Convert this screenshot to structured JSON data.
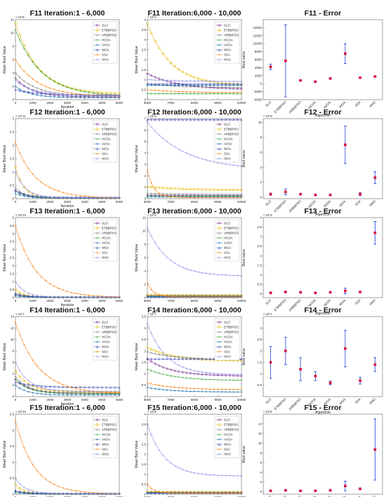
{
  "algorithms": [
    "SLO",
    "ETBBPSO",
    "ARBBPSO",
    "HCOA",
    "AVOA",
    "WOA",
    "SSA",
    "HHO"
  ],
  "colors": {
    "SLO": "#7b2d8e",
    "ETBBPSO": "#e8c11c",
    "ARBBPSO": "#7f7f7f",
    "HCOA": "#2ca02c",
    "AVOA": "#1f77b4",
    "WOA": "#3f51b5",
    "SSA": "#ff7f0e",
    "HHO": "#8d8ee8",
    "errbar": "#1f3fd6",
    "errmark": "#e0103c"
  },
  "chart_data": [
    {
      "id": "F11-a",
      "type": "line",
      "title": "F11  Iteration:1 - 6,000",
      "xlabel": "Iteration",
      "ylabel": "Mean Best Value",
      "multiplier": "× 10^8",
      "xlim": [
        0,
        6000
      ],
      "ylim": [
        0,
        12
      ],
      "xticks": [
        0,
        1000,
        2000,
        3000,
        4000,
        5000,
        6000
      ],
      "yticks": [
        0,
        2,
        4,
        6,
        8,
        10,
        12
      ],
      "series": [
        {
          "name": "SLO",
          "start": 3.2,
          "end": 0.4,
          "rate": 1.2
        },
        {
          "name": "ETBBPSO",
          "start": 11.5,
          "end": 0.8,
          "rate": 0.9
        },
        {
          "name": "ARBBPSO",
          "start": 4.0,
          "end": 0.5,
          "rate": 1.0
        },
        {
          "name": "HCOA",
          "start": 10.5,
          "end": 0.5,
          "rate": 0.8
        },
        {
          "name": "AVOA",
          "start": 2.0,
          "end": 0.3,
          "rate": 1.4
        },
        {
          "name": "WOA",
          "start": 1.5,
          "end": 0.7,
          "rate": 1.0
        },
        {
          "name": "SSA",
          "start": 6.0,
          "end": 0.5,
          "rate": 0.9
        },
        {
          "name": "HHO",
          "start": 2.8,
          "end": 0.6,
          "rate": 1.1
        }
      ]
    },
    {
      "id": "F11-b",
      "type": "line",
      "title": "F11  Iteration:6,000 - 10,000",
      "xlabel": "",
      "ylabel": "Mean Best Value",
      "multiplier": "× 10^8",
      "xlim": [
        6000,
        10000
      ],
      "ylim": [
        0,
        4
      ],
      "xticks": [
        6000,
        7000,
        8000,
        9000,
        10000
      ],
      "yticks": [
        0,
        0.5,
        1,
        1.5,
        2,
        2.5,
        3,
        3.5,
        4
      ],
      "series": [
        {
          "name": "SLO",
          "start": 1.3,
          "end": 0.5,
          "rate": 0.6
        },
        {
          "name": "ETBBPSO",
          "start": 3.8,
          "end": 0.7,
          "rate": 0.8
        },
        {
          "name": "ARBBPSO",
          "start": 0.8,
          "end": 0.6,
          "rate": 0.6
        },
        {
          "name": "HCOA",
          "start": 0.3,
          "end": 0.3,
          "rate": 0.5
        },
        {
          "name": "AVOA",
          "start": 0.72,
          "end": 0.72,
          "rate": 0.5
        },
        {
          "name": "WOA",
          "start": 0.78,
          "end": 0.78,
          "rate": 0.5
        },
        {
          "name": "SSA",
          "start": 0.5,
          "end": 0.35,
          "rate": 0.6
        },
        {
          "name": "HHO",
          "start": 1.0,
          "end": 0.9,
          "rate": 0.5
        }
      ]
    },
    {
      "id": "F11-c",
      "type": "errorbar",
      "title": "F11 - Error",
      "xlabel": "Algorithm",
      "ylabel": "Best value",
      "multiplier": "",
      "ylim": [
        -4000,
        16000
      ],
      "yticks": [
        -4000,
        -2000,
        0,
        2000,
        4000,
        6000,
        8000,
        10000,
        12000,
        14000
      ],
      "means": [
        4200,
        5700,
        800,
        500,
        1300,
        7500,
        1500,
        1800
      ],
      "errs": [
        700,
        9000,
        150,
        150,
        150,
        2500,
        150,
        150
      ]
    },
    {
      "id": "F12-a",
      "type": "line",
      "title": "F12  Iteration:1 - 6,000",
      "xlabel": "Iteration",
      "ylabel": "Mean Best Value",
      "multiplier": "× 10^11",
      "xlim": [
        0,
        6000
      ],
      "ylim": [
        0,
        3
      ],
      "xticks": [
        0,
        1000,
        2000,
        3000,
        4000,
        5000,
        6000
      ],
      "yticks": [
        0,
        0.5,
        1,
        1.5,
        2,
        2.5,
        3
      ],
      "series": [
        {
          "name": "SLO",
          "start": 0.3,
          "end": 0.02,
          "rate": 2.0
        },
        {
          "name": "ETBBPSO",
          "start": 1.2,
          "end": 0.02,
          "rate": 2.5
        },
        {
          "name": "ARBBPSO",
          "start": 0.4,
          "end": 0.02,
          "rate": 2.0
        },
        {
          "name": "HCOA",
          "start": 0.3,
          "end": 0.02,
          "rate": 2.0
        },
        {
          "name": "AVOA",
          "start": 0.2,
          "end": 0.02,
          "rate": 2.0
        },
        {
          "name": "WOA",
          "start": 0.3,
          "end": 0.05,
          "rate": 1.8
        },
        {
          "name": "SSA",
          "start": 2.1,
          "end": 0.02,
          "rate": 1.0
        },
        {
          "name": "HHO",
          "start": 1.0,
          "end": 0.03,
          "rate": 2.0
        }
      ]
    },
    {
      "id": "F12-b",
      "type": "line",
      "title": "F12  Iteration:6,000 - 10,000",
      "xlabel": "",
      "ylabel": "Mean Best Value",
      "multiplier": "× 10^9",
      "xlim": [
        6000,
        10000
      ],
      "ylim": [
        0,
        7
      ],
      "xticks": [
        6000,
        7000,
        8000,
        9000,
        10000
      ],
      "yticks": [
        0,
        1,
        2,
        3,
        4,
        5,
        6,
        7
      ],
      "series": [
        {
          "name": "SLO",
          "start": 0.3,
          "end": 0.25,
          "rate": 0.5
        },
        {
          "name": "ETBBPSO",
          "start": 1.05,
          "end": 0.75,
          "rate": 0.6
        },
        {
          "name": "ARBBPSO",
          "start": 0.45,
          "end": 0.35,
          "rate": 0.5
        },
        {
          "name": "HCOA",
          "start": 0.25,
          "end": 0.2,
          "rate": 0.5
        },
        {
          "name": "AVOA",
          "start": 0.15,
          "end": 0.15,
          "rate": 0.5
        },
        {
          "name": "WOA",
          "start": 6.9,
          "end": 6.9,
          "rate": 0.5
        },
        {
          "name": "SSA",
          "start": 2.5,
          "end": 0.1,
          "rate": 3.0
        },
        {
          "name": "HHO",
          "start": 6.7,
          "end": 2.5,
          "rate": 0.5
        }
      ]
    },
    {
      "id": "F12-c",
      "type": "errorbar",
      "title": "F12 - Error",
      "xlabel": "Algorithm",
      "ylabel": "Best value",
      "multiplier": "× 10^9",
      "ylim": [
        -0.2,
        10.5
      ],
      "yticks": [
        0,
        2,
        4,
        6,
        8,
        10
      ],
      "means": [
        0.4,
        0.7,
        0.4,
        0.3,
        0.3,
        7.0,
        0.4,
        2.6
      ],
      "errs": [
        0.15,
        0.4,
        0.1,
        0.08,
        0.08,
        2.5,
        0.2,
        0.8
      ]
    },
    {
      "id": "F13-a",
      "type": "line",
      "title": "F13  Iteration:1 - 6,000",
      "xlabel": "Iteration",
      "ylabel": "Mean Best Value",
      "multiplier": "× 10^10",
      "xlim": [
        0,
        6000
      ],
      "ylim": [
        0,
        5
      ],
      "xticks": [
        0,
        1000,
        2000,
        3000,
        4000,
        5000,
        6000
      ],
      "yticks": [
        0,
        0.5,
        1,
        1.5,
        2,
        2.5,
        3,
        3.5,
        4,
        4.5,
        5
      ],
      "series": [
        {
          "name": "SLO",
          "start": 0.2,
          "end": 0.02,
          "rate": 2.0
        },
        {
          "name": "ETBBPSO",
          "start": 0.5,
          "end": 0.02,
          "rate": 2.5
        },
        {
          "name": "ARBBPSO",
          "start": 0.3,
          "end": 0.02,
          "rate": 2.0
        },
        {
          "name": "HCOA",
          "start": 0.2,
          "end": 0.02,
          "rate": 2.0
        },
        {
          "name": "AVOA",
          "start": 0.1,
          "end": 0.02,
          "rate": 2.0
        },
        {
          "name": "WOA",
          "start": 0.2,
          "end": 0.04,
          "rate": 1.8
        },
        {
          "name": "SSA",
          "start": 4.5,
          "end": 0.02,
          "rate": 1.0
        },
        {
          "name": "HHO",
          "start": 1.0,
          "end": 0.03,
          "rate": 2.2
        }
      ]
    },
    {
      "id": "F13-b",
      "type": "line",
      "title": "F13  Iteration:6,000 - 10,000",
      "xlabel": "",
      "ylabel": "Mean Best Value",
      "multiplier": "× 10^9",
      "xlim": [
        6000,
        10000
      ],
      "ylim": [
        0,
        12
      ],
      "xticks": [
        6000,
        7000,
        8000,
        9000,
        10000
      ],
      "yticks": [
        0,
        2,
        4,
        6,
        8,
        10,
        12
      ],
      "series": [
        {
          "name": "SLO",
          "start": 0.3,
          "end": 0.3,
          "rate": 0.5
        },
        {
          "name": "ETBBPSO",
          "start": 0.4,
          "end": 0.35,
          "rate": 0.5
        },
        {
          "name": "ARBBPSO",
          "start": 0.25,
          "end": 0.2,
          "rate": 0.5
        },
        {
          "name": "HCOA",
          "start": 0.2,
          "end": 0.2,
          "rate": 0.5
        },
        {
          "name": "AVOA",
          "start": 0.15,
          "end": 0.15,
          "rate": 0.5
        },
        {
          "name": "WOA",
          "start": 0.1,
          "end": 0.1,
          "rate": 0.5
        },
        {
          "name": "SSA",
          "start": 2.2,
          "end": 0.1,
          "rate": 3.0
        },
        {
          "name": "HHO",
          "start": 10.5,
          "end": 3.2,
          "rate": 0.9
        }
      ]
    },
    {
      "id": "F13-c",
      "type": "errorbar",
      "title": "F13 - Error",
      "xlabel": "Algorithm",
      "ylabel": "Best value",
      "multiplier": "× 10^9",
      "ylim": [
        -0.2,
        4
      ],
      "yticks": [
        0,
        0.5,
        1,
        1.5,
        2,
        2.5,
        3,
        3.5,
        4
      ],
      "means": [
        0.05,
        0.1,
        0.08,
        0.05,
        0.08,
        0.15,
        0.1,
        3.2
      ],
      "errs": [
        0.02,
        0.03,
        0.02,
        0.02,
        0.02,
        0.15,
        0.03,
        0.6
      ]
    },
    {
      "id": "F14-a",
      "type": "line",
      "title": "F14  Iteration:1 - 6,000",
      "xlabel": "Iteration",
      "ylabel": "Mean Best Value",
      "multiplier": "× 10^7",
      "xlim": [
        0,
        6000
      ],
      "ylim": [
        0,
        14
      ],
      "xticks": [
        0,
        1000,
        2000,
        3000,
        4000,
        5000,
        6000
      ],
      "yticks": [
        0,
        2,
        4,
        6,
        8,
        10,
        12,
        14
      ],
      "series": [
        {
          "name": "SLO",
          "start": 3.0,
          "end": 0.6,
          "rate": 1.5
        },
        {
          "name": "ETBBPSO",
          "start": 4.5,
          "end": 0.8,
          "rate": 1.5
        },
        {
          "name": "ARBBPSO",
          "start": 3.5,
          "end": 0.5,
          "rate": 1.5
        },
        {
          "name": "HCOA",
          "start": 3.0,
          "end": 0.5,
          "rate": 1.5
        },
        {
          "name": "AVOA",
          "start": 2.0,
          "end": 0.3,
          "rate": 1.8
        },
        {
          "name": "WOA",
          "start": 2.5,
          "end": 1.6,
          "rate": 1.0
        },
        {
          "name": "SSA",
          "start": 13.0,
          "end": 0.5,
          "rate": 0.9
        },
        {
          "name": "HHO",
          "start": 6.0,
          "end": 0.9,
          "rate": 1.6
        }
      ]
    },
    {
      "id": "F14-b",
      "type": "line",
      "title": "F14  Iteration:6,000 - 10,000",
      "xlabel": "",
      "ylabel": "Mean Best Value",
      "multiplier": "× 10^7",
      "xlim": [
        6000,
        10000
      ],
      "ylim": [
        0,
        3.5
      ],
      "xticks": [
        6000,
        7000,
        8000,
        9000,
        10000
      ],
      "yticks": [
        0,
        0.5,
        1,
        1.5,
        2,
        2.5,
        3,
        3.5
      ],
      "series": [
        {
          "name": "SLO",
          "start": 1.65,
          "end": 0.9,
          "rate": 0.8
        },
        {
          "name": "ETBBPSO",
          "start": 2.15,
          "end": 1.55,
          "rate": 0.7
        },
        {
          "name": "ARBBPSO",
          "start": 1.95,
          "end": 1.6,
          "rate": 0.6
        },
        {
          "name": "HCOA",
          "start": 1.2,
          "end": 0.7,
          "rate": 0.7
        },
        {
          "name": "AVOA",
          "start": 0.4,
          "end": 0.2,
          "rate": 0.8
        },
        {
          "name": "WOA",
          "start": 1.65,
          "end": 1.65,
          "rate": 0.5
        },
        {
          "name": "SSA",
          "start": 0.6,
          "end": 0.3,
          "rate": 0.7
        },
        {
          "name": "HHO",
          "start": 3.2,
          "end": 0.95,
          "rate": 1.0
        }
      ]
    },
    {
      "id": "F14-c",
      "type": "errorbar",
      "title": "F14 - Error",
      "xlabel": "Algorithm",
      "ylabel": "Best value",
      "multiplier": "× 10^7",
      "ylim": [
        0,
        3.5
      ],
      "yticks": [
        0.5,
        1,
        1.5,
        2,
        2.5,
        3
      ],
      "means": [
        1.5,
        2.0,
        1.2,
        0.9,
        0.6,
        2.1,
        0.7,
        1.4
      ],
      "errs": [
        0.7,
        0.6,
        0.5,
        0.2,
        0.08,
        0.8,
        0.15,
        0.3
      ]
    },
    {
      "id": "F15-a",
      "type": "line",
      "title": "F15  Iteration:1 - 6,000",
      "xlabel": "Iteration",
      "ylabel": "Mean Best Value",
      "multiplier": "× 10^10",
      "xlim": [
        0,
        6000
      ],
      "ylim": [
        0,
        2.5
      ],
      "xticks": [
        0,
        1000,
        2000,
        3000,
        4000,
        5000,
        6000
      ],
      "yticks": [
        0,
        0.5,
        1,
        1.5,
        2,
        2.5
      ],
      "series": [
        {
          "name": "SLO",
          "start": 0.1,
          "end": 0.01,
          "rate": 2.0
        },
        {
          "name": "ETBBPSO",
          "start": 0.3,
          "end": 0.01,
          "rate": 2.5
        },
        {
          "name": "ARBBPSO",
          "start": 0.1,
          "end": 0.01,
          "rate": 2.0
        },
        {
          "name": "HCOA",
          "start": 0.1,
          "end": 0.01,
          "rate": 2.0
        },
        {
          "name": "AVOA",
          "start": 0.05,
          "end": 0.01,
          "rate": 2.0
        },
        {
          "name": "WOA",
          "start": 0.1,
          "end": 0.02,
          "rate": 1.8
        },
        {
          "name": "SSA",
          "start": 2.3,
          "end": 0.01,
          "rate": 1.1
        },
        {
          "name": "HHO",
          "start": 0.5,
          "end": 0.02,
          "rate": 2.2
        }
      ]
    },
    {
      "id": "F15-b",
      "type": "line",
      "title": "F15  Iteration:6,000 - 10,000",
      "xlabel": "",
      "ylabel": "Mean Best Value",
      "multiplier": "× 10^8",
      "xlim": [
        6000,
        10000
      ],
      "ylim": [
        0,
        4
      ],
      "xticks": [
        6000,
        7000,
        8000,
        9000,
        10000
      ],
      "yticks": [
        0,
        0.5,
        1,
        1.5,
        2,
        2.5,
        3,
        3.5,
        4
      ],
      "series": [
        {
          "name": "SLO",
          "start": 0.1,
          "end": 0.1,
          "rate": 0.5
        },
        {
          "name": "ETBBPSO",
          "start": 0.12,
          "end": 0.1,
          "rate": 0.5
        },
        {
          "name": "ARBBPSO",
          "start": 0.08,
          "end": 0.08,
          "rate": 0.5
        },
        {
          "name": "HCOA",
          "start": 0.07,
          "end": 0.07,
          "rate": 0.5
        },
        {
          "name": "AVOA",
          "start": 0.05,
          "end": 0.05,
          "rate": 0.5
        },
        {
          "name": "WOA",
          "start": 0.06,
          "end": 0.06,
          "rate": 0.5
        },
        {
          "name": "SSA",
          "start": 0.5,
          "end": 0.05,
          "rate": 3.0
        },
        {
          "name": "HHO",
          "start": 3.5,
          "end": 0.9,
          "rate": 1.1
        }
      ]
    },
    {
      "id": "F15-c",
      "type": "errorbar",
      "title": "F15 - Error",
      "xlabel": "Algorithm",
      "ylabel": "Best value",
      "multiplier": "× 10^8",
      "ylim": [
        -0.5,
        16
      ],
      "yticks": [
        0,
        2,
        4,
        6,
        8,
        10,
        12,
        14
      ],
      "means": [
        0.2,
        0.3,
        0.2,
        0.2,
        0.3,
        1.2,
        0.6,
        8.7
      ],
      "errs": [
        0.1,
        0.1,
        0.1,
        0.1,
        0.1,
        1.0,
        0.2,
        6.3
      ]
    }
  ]
}
